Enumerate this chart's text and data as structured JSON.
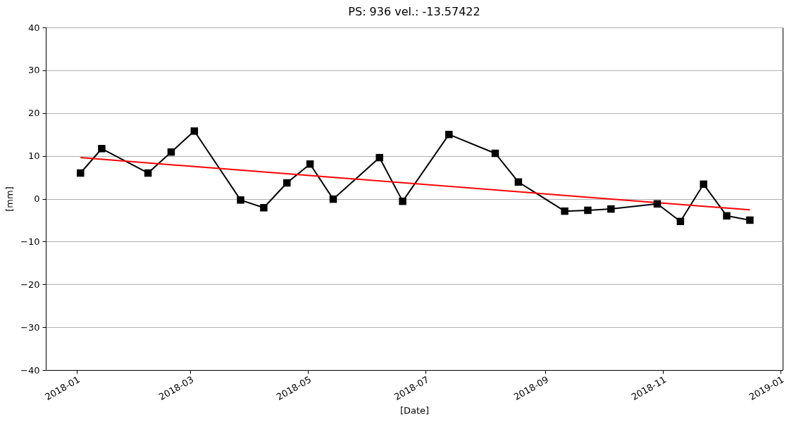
{
  "chart_data": {
    "type": "line",
    "title": "PS: 936 vel.: -13.57422",
    "xlabel": "[Date]",
    "ylabel": "[mm]",
    "xlim": [
      "2017-12-16",
      "2019-01-02"
    ],
    "xticks": [
      {
        "value": "2018-01-01",
        "label": "2018-01"
      },
      {
        "value": "2018-03-01",
        "label": "2018-03"
      },
      {
        "value": "2018-05-01",
        "label": "2018-05"
      },
      {
        "value": "2018-07-01",
        "label": "2018-07"
      },
      {
        "value": "2018-09-01",
        "label": "2018-09"
      },
      {
        "value": "2018-11-01",
        "label": "2018-11"
      },
      {
        "value": "2019-01-01",
        "label": "2019-01"
      }
    ],
    "ylim": [
      -40,
      40
    ],
    "yticks": [
      -40,
      -30,
      -20,
      -10,
      0,
      10,
      20,
      30,
      40
    ],
    "grid": "y",
    "marker": "square",
    "line_style": "solid",
    "series": [
      {
        "color": "#000000",
        "x": [
          "2018-01-03",
          "2018-01-14",
          "2018-02-07",
          "2018-02-19",
          "2018-03-03",
          "2018-03-27",
          "2018-04-08",
          "2018-04-20",
          "2018-05-02",
          "2018-05-14",
          "2018-06-07",
          "2018-06-19",
          "2018-07-13",
          "2018-08-06",
          "2018-08-18",
          "2018-09-11",
          "2018-09-23",
          "2018-10-05",
          "2018-10-29",
          "2018-11-10",
          "2018-11-22",
          "2018-12-04",
          "2018-12-16"
        ],
        "values": [
          6.0,
          11.7,
          6.0,
          10.9,
          15.8,
          -0.3,
          -2.1,
          3.7,
          8.1,
          -0.1,
          9.6,
          -0.6,
          15.0,
          10.6,
          3.9,
          -2.9,
          -2.7,
          -2.4,
          -1.2,
          -5.3,
          3.4,
          -4.0,
          -5.0
        ]
      },
      {
        "type": "line",
        "color": "#ff0000",
        "marker": "none",
        "x": [
          "2018-01-03",
          "2018-12-16"
        ],
        "values": [
          9.6,
          -2.6
        ]
      }
    ]
  }
}
